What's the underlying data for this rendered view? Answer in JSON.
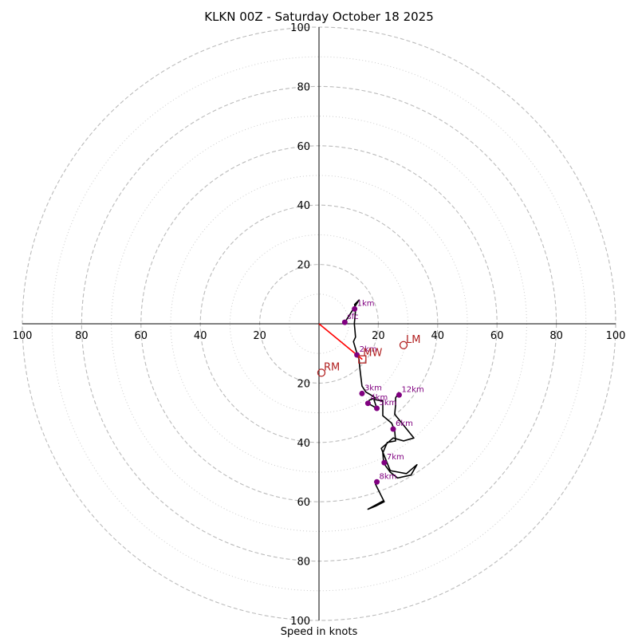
{
  "chart_data": {
    "type": "hodograph",
    "title": "KLKN 00Z - Saturday October 18 2025",
    "xlabel": "Speed in knots",
    "range": [
      -100,
      100
    ],
    "rings_dashed": [
      20,
      40,
      60,
      80,
      100
    ],
    "rings_dotted": [
      10,
      30,
      50,
      70,
      90
    ],
    "x_tick_labels": [
      "100",
      "80",
      "60",
      "40",
      "20",
      "20",
      "40",
      "60",
      "80",
      "100"
    ],
    "x_tick_values": [
      -100,
      -80,
      -60,
      -40,
      -20,
      20,
      40,
      60,
      80,
      100
    ],
    "y_tick_labels": [
      "100",
      "80",
      "60",
      "40",
      "20",
      "20",
      "40",
      "60",
      "80",
      "100"
    ],
    "y_tick_values": [
      100,
      80,
      60,
      40,
      20,
      -20,
      -40,
      -60,
      -80,
      -100
    ],
    "trace": [
      [
        8.7,
        0.5
      ],
      [
        10,
        2.5
      ],
      [
        13.5,
        8
      ],
      [
        12,
        6.5
      ],
      [
        12.3,
        4.5
      ],
      [
        12.1,
        2
      ],
      [
        11.9,
        0
      ],
      [
        12.1,
        -2
      ],
      [
        12.3,
        -4.5
      ],
      [
        11.6,
        -6
      ],
      [
        12.8,
        -10
      ],
      [
        13.5,
        -12
      ],
      [
        13.7,
        -14.5
      ],
      [
        14,
        -17
      ],
      [
        14.5,
        -21
      ],
      [
        15.8,
        -23
      ],
      [
        17.5,
        -24
      ],
      [
        19,
        -25
      ],
      [
        17,
        -25.7
      ],
      [
        16.5,
        -26.8
      ],
      [
        19.5,
        -28.5
      ],
      [
        18.5,
        -25.5
      ],
      [
        21.5,
        -26
      ],
      [
        21.5,
        -31
      ],
      [
        24.5,
        -33.5
      ],
      [
        25.5,
        -36
      ],
      [
        25.8,
        -39.5
      ],
      [
        23,
        -40
      ],
      [
        21.5,
        -43.5
      ],
      [
        21.8,
        -47
      ],
      [
        24,
        -50
      ],
      [
        26.5,
        -52
      ],
      [
        31,
        -51
      ],
      [
        33,
        -47.5
      ],
      [
        29.5,
        -50.5
      ],
      [
        24,
        -49.5
      ],
      [
        21,
        -42
      ],
      [
        25,
        -38.5
      ],
      [
        28.5,
        -39.5
      ],
      [
        32,
        -38.5
      ],
      [
        25.5,
        -30.5
      ],
      [
        25.8,
        -27.5
      ],
      [
        25.8,
        -25
      ],
      [
        27,
        -23
      ]
    ],
    "trace_tail": [
      [
        19,
        -54
      ],
      [
        22,
        -60
      ],
      [
        19,
        -61.5
      ],
      [
        16.5,
        -62.5
      ],
      [
        22,
        -59.5
      ]
    ],
    "height_points": [
      {
        "label": "sfc",
        "u": 8.7,
        "v": 0.5
      },
      {
        "label": "1km",
        "u": 12,
        "v": 5
      },
      {
        "label": "2km",
        "u": 12.8,
        "v": -10.5
      },
      {
        "label": "3km",
        "u": 14.5,
        "v": -23.5
      },
      {
        "label": "4km",
        "u": 16.5,
        "v": -26.8
      },
      {
        "label": "5km",
        "u": 19.5,
        "v": -28.5
      },
      {
        "label": "6km",
        "u": 25,
        "v": -35.5
      },
      {
        "label": "7km",
        "u": 22,
        "v": -46.8
      },
      {
        "label": "8km",
        "u": 19.5,
        "v": -53.3
      },
      {
        "label": "12km",
        "u": 27,
        "v": -24
      }
    ],
    "storm_motion": {
      "RM": {
        "label": "RM",
        "u": 0.8,
        "v": -16.5
      },
      "LM": {
        "label": "LM",
        "u": 28.5,
        "v": -7.2
      },
      "MW": {
        "label": "MW",
        "u": 14.6,
        "v": -12
      },
      "vector_end": {
        "u": 14.6,
        "v": -12
      }
    },
    "colors": {
      "trace": "#000000",
      "height_point": "#800080",
      "storm": "#b22222",
      "vector": "#ff0000",
      "ring": "#bbbbbb",
      "axis": "#000000"
    }
  }
}
